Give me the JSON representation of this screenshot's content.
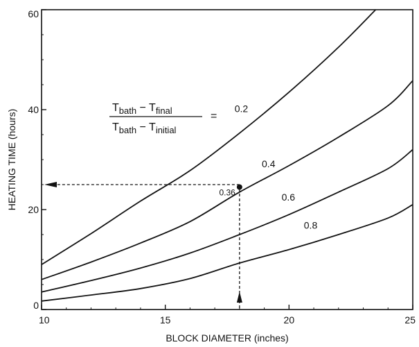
{
  "chart_data": {
    "type": "line",
    "title": "",
    "xlabel": "BLOCK DIAMETER (inches)",
    "ylabel": "HEATING TIME (hours)",
    "xlim": [
      10,
      25
    ],
    "ylim": [
      0,
      60
    ],
    "x_ticks": [
      10,
      15,
      20,
      25
    ],
    "y_ticks": [
      0,
      20,
      40,
      60
    ],
    "x_tick_labels": [
      "10",
      "15",
      "20",
      "25"
    ],
    "y_tick_labels": [
      "0",
      "20",
      "40",
      "60"
    ],
    "grid": false,
    "formula": {
      "num_main": "T",
      "num_sub1": "bath",
      "num_minus": " − T",
      "num_sub2": "final",
      "den_main": "T",
      "den_sub1": "bath",
      "den_minus": " − T",
      "den_sub2": "initial",
      "equals": "="
    },
    "series": [
      {
        "name": "0.2",
        "x": [
          10,
          12,
          14,
          16,
          18,
          20,
          22,
          23.5
        ],
        "y": [
          9,
          15.2,
          21.7,
          27.8,
          35.3,
          43.5,
          52.5,
          60
        ]
      },
      {
        "name": "0.4",
        "x": [
          10,
          12,
          14,
          16,
          18,
          20,
          22,
          24,
          25
        ],
        "y": [
          6,
          9.5,
          13.3,
          17.6,
          23.5,
          28.8,
          34.5,
          40.8,
          45.8
        ]
      },
      {
        "name": "0.6",
        "x": [
          10,
          12,
          14,
          16,
          18,
          20,
          22,
          24,
          25
        ],
        "y": [
          3.5,
          5.8,
          8.3,
          11.3,
          15,
          19,
          23.5,
          28.2,
          32
        ]
      },
      {
        "name": "0.8",
        "x": [
          10,
          12,
          14,
          16,
          18,
          20,
          22,
          24,
          25
        ],
        "y": [
          1.7,
          2.9,
          4.2,
          6.2,
          9.3,
          12,
          15,
          18.3,
          21
        ]
      }
    ],
    "annotation": {
      "point": {
        "x": 18,
        "y": 24.5
      },
      "label": "0.36",
      "arrow_from_x_axis": 18,
      "arrow_to_y_axis": 25
    }
  }
}
